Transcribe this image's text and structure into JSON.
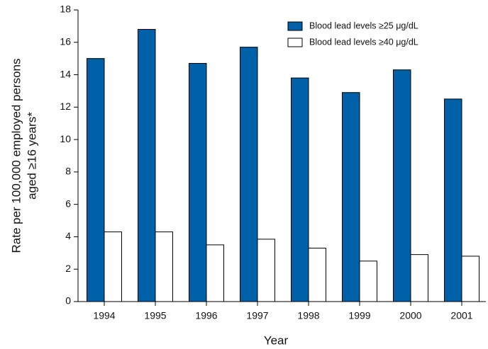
{
  "chart_data": {
    "type": "bar",
    "xlabel": "Year",
    "ylabel": [
      "Rate per 100,000 employed persons",
      "aged ≥16 years*"
    ],
    "categories": [
      "1994",
      "1995",
      "1996",
      "1997",
      "1998",
      "1999",
      "2000",
      "2001"
    ],
    "series": [
      {
        "name": "Blood lead levels ≥25 μg/dL",
        "color": "#0060a8",
        "values": [
          15.0,
          16.8,
          14.7,
          15.7,
          13.8,
          12.9,
          14.3,
          12.5
        ]
      },
      {
        "name": "Blood lead levels ≥40 μg/dL",
        "color": "#ffffff",
        "values": [
          4.3,
          4.3,
          3.5,
          3.85,
          3.3,
          2.5,
          2.9,
          2.8
        ]
      }
    ],
    "ylim": [
      0,
      18
    ],
    "yticks": [
      0,
      2,
      4,
      6,
      8,
      10,
      12,
      14,
      16,
      18
    ],
    "legend": "upper-right",
    "grid": false
  }
}
